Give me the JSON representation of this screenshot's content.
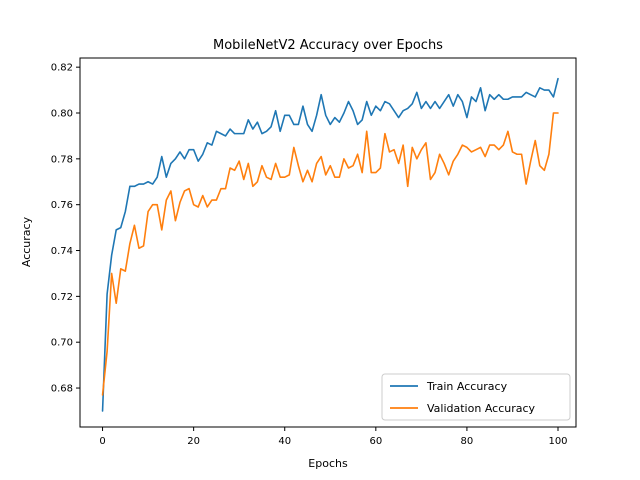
{
  "chart_data": {
    "type": "line",
    "title": "MobileNetV2 Accuracy over Epochs",
    "xlabel": "Epochs",
    "ylabel": "Accuracy",
    "xlim": [
      -4.95,
      103.95
    ],
    "ylim": [
      0.663,
      0.824
    ],
    "xticks": [
      0,
      20,
      40,
      60,
      80,
      100
    ],
    "yticks": [
      0.68,
      0.7,
      0.72,
      0.74,
      0.76,
      0.78,
      0.8,
      0.82
    ],
    "grid": false,
    "legend_position": "lower right",
    "x_start": 0,
    "series": [
      {
        "name": "Train Accuracy",
        "color": "#1f77b4",
        "values": [
          0.67,
          0.721,
          0.738,
          0.749,
          0.75,
          0.757,
          0.768,
          0.768,
          0.769,
          0.769,
          0.77,
          0.769,
          0.772,
          0.781,
          0.772,
          0.778,
          0.78,
          0.783,
          0.78,
          0.784,
          0.784,
          0.779,
          0.782,
          0.787,
          0.786,
          0.792,
          0.791,
          0.79,
          0.793,
          0.791,
          0.791,
          0.791,
          0.797,
          0.793,
          0.796,
          0.791,
          0.792,
          0.794,
          0.801,
          0.792,
          0.799,
          0.799,
          0.795,
          0.795,
          0.803,
          0.795,
          0.792,
          0.799,
          0.808,
          0.799,
          0.795,
          0.798,
          0.796,
          0.8,
          0.805,
          0.801,
          0.795,
          0.797,
          0.805,
          0.799,
          0.803,
          0.801,
          0.805,
          0.804,
          0.801,
          0.798,
          0.801,
          0.802,
          0.804,
          0.809,
          0.802,
          0.805,
          0.802,
          0.805,
          0.802,
          0.805,
          0.808,
          0.803,
          0.808,
          0.805,
          0.798,
          0.807,
          0.805,
          0.811,
          0.801,
          0.808,
          0.806,
          0.808,
          0.806,
          0.806,
          0.807,
          0.807,
          0.807,
          0.809,
          0.808,
          0.807,
          0.811,
          0.81,
          0.81,
          0.807,
          0.815
        ]
      },
      {
        "name": "Validation Accuracy",
        "color": "#ff7f0e",
        "values": [
          0.677,
          0.696,
          0.73,
          0.717,
          0.732,
          0.731,
          0.743,
          0.751,
          0.741,
          0.742,
          0.757,
          0.76,
          0.76,
          0.749,
          0.762,
          0.766,
          0.753,
          0.761,
          0.766,
          0.767,
          0.76,
          0.759,
          0.764,
          0.759,
          0.762,
          0.762,
          0.767,
          0.767,
          0.776,
          0.775,
          0.779,
          0.771,
          0.778,
          0.768,
          0.77,
          0.777,
          0.772,
          0.771,
          0.778,
          0.772,
          0.772,
          0.773,
          0.785,
          0.777,
          0.77,
          0.775,
          0.77,
          0.778,
          0.781,
          0.773,
          0.777,
          0.772,
          0.772,
          0.78,
          0.776,
          0.777,
          0.782,
          0.774,
          0.792,
          0.774,
          0.774,
          0.776,
          0.791,
          0.783,
          0.784,
          0.778,
          0.786,
          0.768,
          0.785,
          0.78,
          0.784,
          0.787,
          0.771,
          0.774,
          0.782,
          0.778,
          0.773,
          0.779,
          0.782,
          0.786,
          0.785,
          0.783,
          0.784,
          0.785,
          0.781,
          0.786,
          0.786,
          0.784,
          0.786,
          0.792,
          0.783,
          0.782,
          0.782,
          0.769,
          0.779,
          0.788,
          0.777,
          0.775,
          0.782,
          0.8,
          0.8
        ]
      }
    ]
  }
}
